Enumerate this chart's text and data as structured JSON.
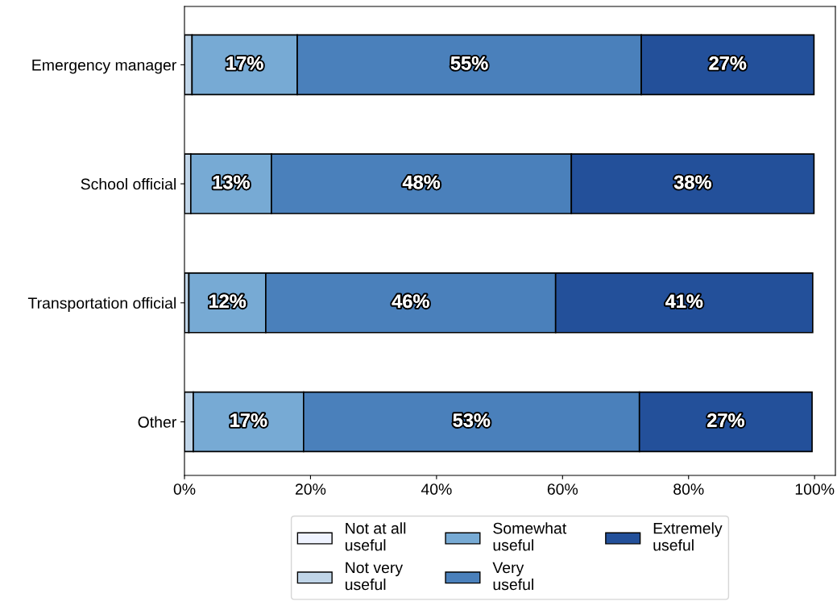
{
  "chart_data": {
    "type": "bar",
    "orientation": "horizontal",
    "stacked": true,
    "categories": [
      "Emergency manager",
      "School official",
      "Transportation official",
      "Other"
    ],
    "series": [
      {
        "name": "Not at all\nuseful",
        "color": "#eff3ff",
        "values": [
          null,
          null,
          null,
          null
        ],
        "value_labels": [
          null,
          null,
          null,
          null
        ]
      },
      {
        "name": "Not very\nuseful",
        "color": "#c0d5e8",
        "values": [
          1.2,
          1.0,
          0.7,
          1.4
        ],
        "value_labels": [
          null,
          null,
          null,
          null
        ]
      },
      {
        "name": "Somewhat\nuseful",
        "color": "#77aad4",
        "values": [
          16.7,
          12.8,
          12.2,
          17.5
        ],
        "value_labels": [
          "17%",
          "13%",
          "12%",
          "17%"
        ]
      },
      {
        "name": "Very\nuseful",
        "color": "#4a80bb",
        "values": [
          54.6,
          47.6,
          46.0,
          53.3
        ],
        "value_labels": [
          "55%",
          "48%",
          "46%",
          "53%"
        ]
      },
      {
        "name": "Extremely\nuseful",
        "color": "#23509a",
        "values": [
          27.4,
          38.5,
          40.8,
          27.4
        ],
        "value_labels": [
          "27%",
          "38%",
          "41%",
          "27%"
        ]
      }
    ],
    "xlim": [
      0,
      103.3
    ],
    "xticks": [
      {
        "value": 0,
        "label": "0%"
      },
      {
        "value": 20,
        "label": "20%"
      },
      {
        "value": 40,
        "label": "40%"
      },
      {
        "value": 60,
        "label": "60%"
      },
      {
        "value": 80,
        "label": "80%"
      },
      {
        "value": 100,
        "label": "100%"
      }
    ],
    "legend": "bottom",
    "grid": false
  }
}
